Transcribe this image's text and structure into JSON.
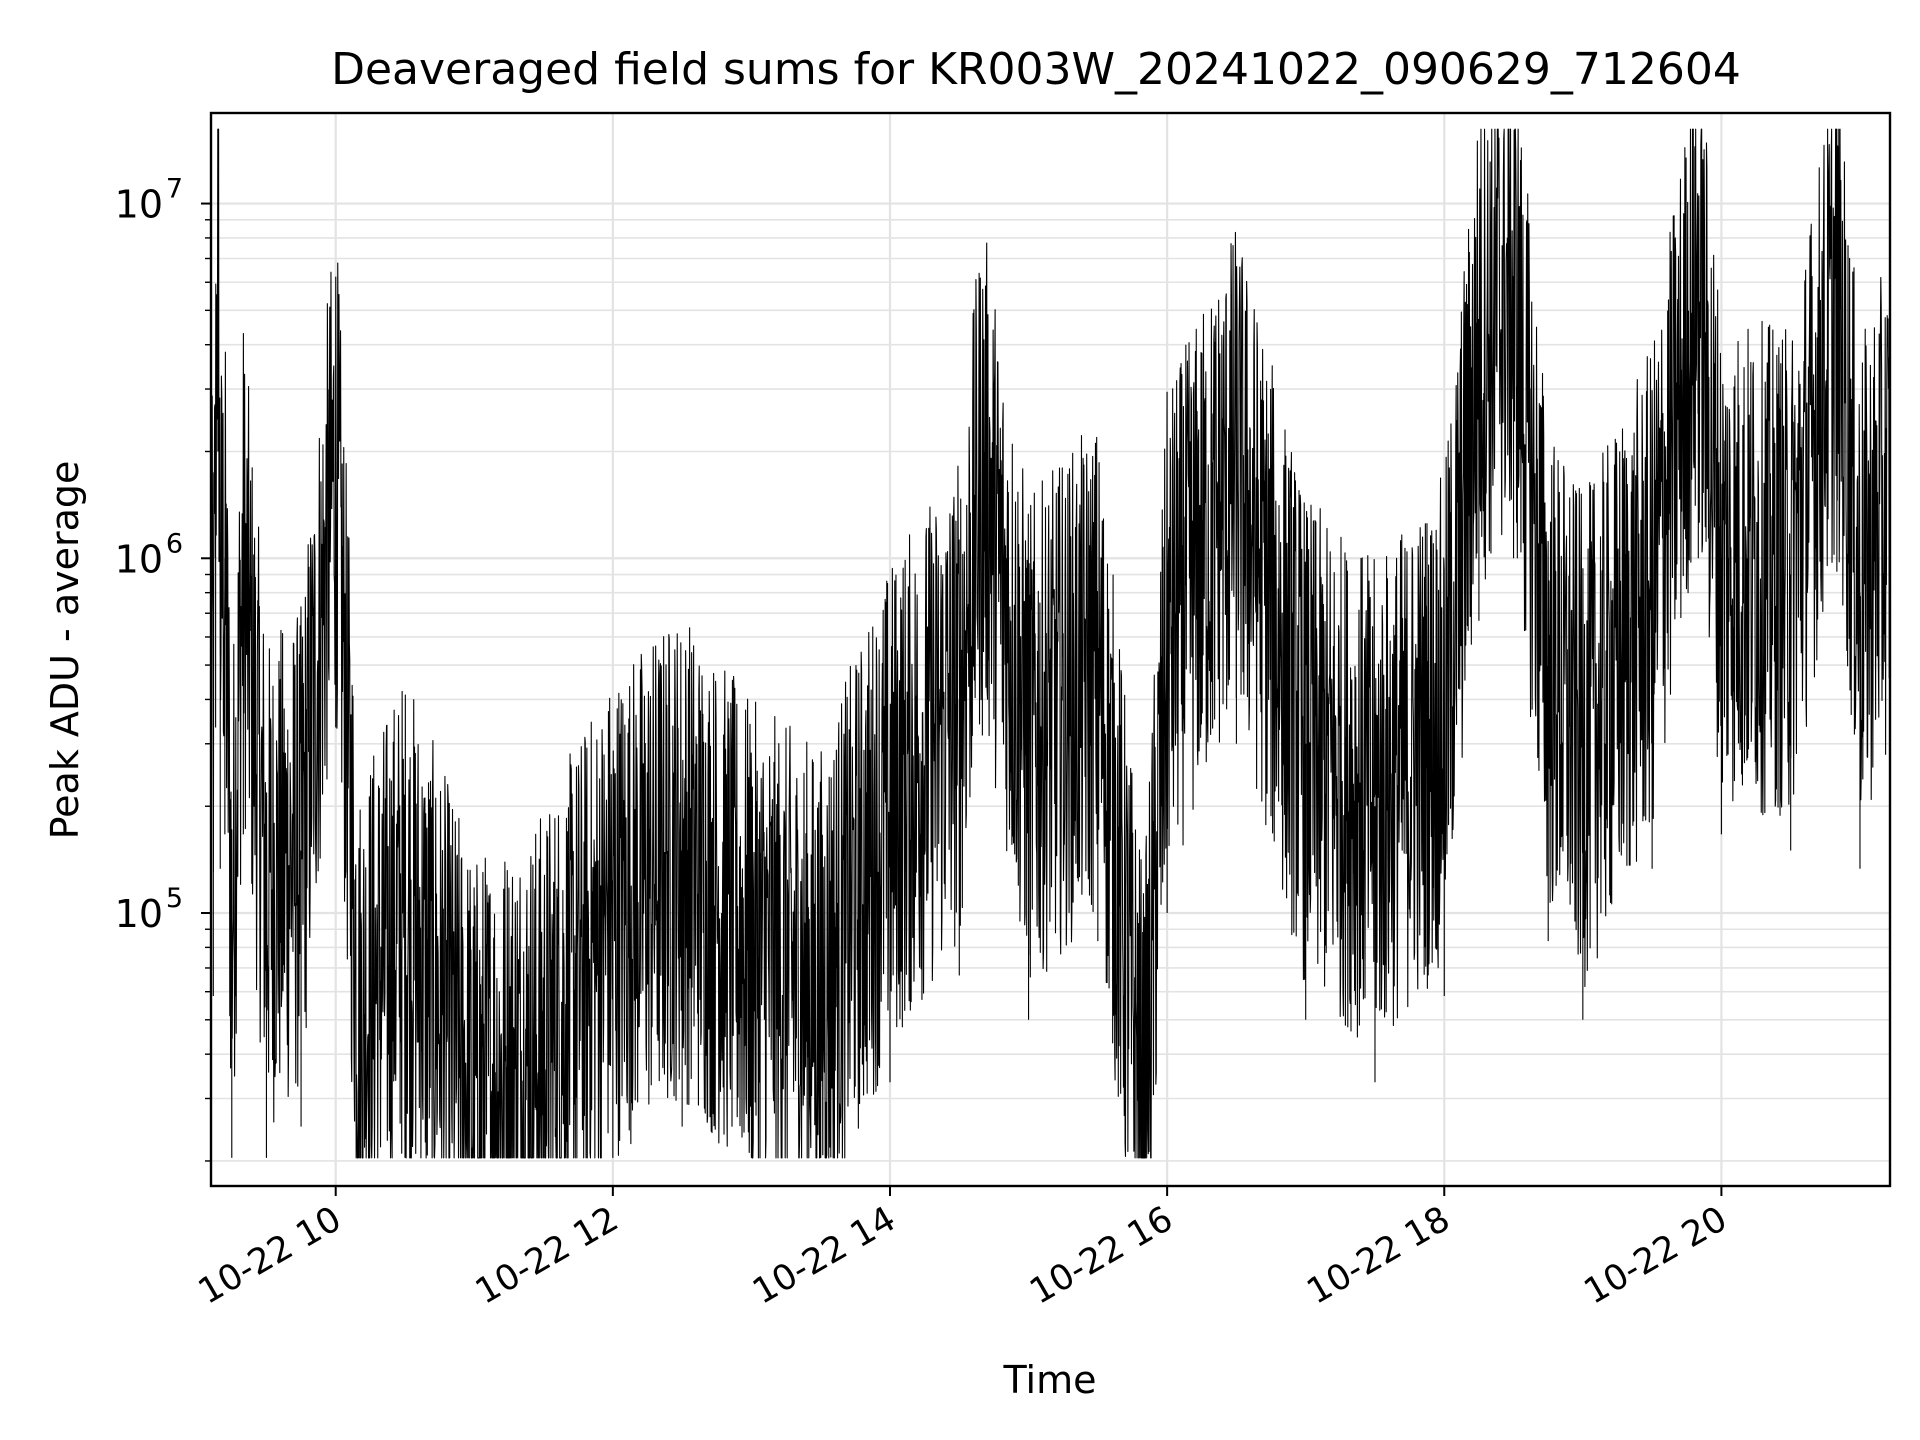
{
  "chart_data": {
    "type": "line",
    "title": "Deaveraged field sums for KR003W_20241022_090629_712604",
    "xlabel": "Time",
    "ylabel": "Peak ADU - average",
    "xlim": [
      "2024-10-22 09:06",
      "2024-10-22 21:13"
    ],
    "xticks": [
      {
        "t": "2024-10-22 10:00",
        "label": "10-22 10"
      },
      {
        "t": "2024-10-22 12:00",
        "label": "10-22 12"
      },
      {
        "t": "2024-10-22 14:00",
        "label": "10-22 14"
      },
      {
        "t": "2024-10-22 16:00",
        "label": "10-22 16"
      },
      {
        "t": "2024-10-22 18:00",
        "label": "10-22 18"
      },
      {
        "t": "2024-10-22 20:00",
        "label": "10-22 20"
      }
    ],
    "yscale": "log",
    "ylim": [
      17000,
      18000000
    ],
    "yticks": [
      {
        "value": 100000,
        "base": "10",
        "exp": "5"
      },
      {
        "value": 1000000,
        "base": "10",
        "exp": "6"
      },
      {
        "value": 10000000,
        "base": "10",
        "exp": "7"
      }
    ],
    "grid": true,
    "series": [
      {
        "color": "#000000",
        "points": [
          [
            "2024-10-22 09:06",
            1000000
          ],
          [
            "2024-10-22 09:07",
            350000
          ],
          [
            "2024-10-22 09:08",
            2000000
          ],
          [
            "2024-10-22 09:09",
            12000000
          ],
          [
            "2024-10-22 09:10",
            800000
          ],
          [
            "2024-10-22 09:12",
            1000000
          ],
          [
            "2024-10-22 09:15",
            90000
          ],
          [
            "2024-10-22 09:20",
            1000000
          ],
          [
            "2024-10-22 09:30",
            120000
          ],
          [
            "2024-10-22 09:45",
            150000
          ],
          [
            "2024-10-22 10:00",
            2000000
          ],
          [
            "2024-10-22 10:10",
            50000
          ],
          [
            "2024-10-22 10:30",
            100000
          ],
          [
            "2024-10-22 11:00",
            30000
          ],
          [
            "2024-10-22 11:30",
            40000
          ],
          [
            "2024-10-22 12:00",
            100000
          ],
          [
            "2024-10-22 12:30",
            150000
          ],
          [
            "2024-10-22 13:00",
            80000
          ],
          [
            "2024-10-22 13:30",
            60000
          ],
          [
            "2024-10-22 14:00",
            200000
          ],
          [
            "2024-10-22 14:30",
            400000
          ],
          [
            "2024-10-22 14:40",
            1900000
          ],
          [
            "2024-10-22 15:00",
            300000
          ],
          [
            "2024-10-22 15:30",
            500000
          ],
          [
            "2024-10-22 15:50",
            25000
          ],
          [
            "2024-10-22 16:00",
            600000
          ],
          [
            "2024-10-22 16:30",
            1800000
          ],
          [
            "2024-10-22 17:00",
            300000
          ],
          [
            "2024-10-22 17:30",
            200000
          ],
          [
            "2024-10-22 18:00",
            350000
          ],
          [
            "2024-10-22 18:15",
            4000000
          ],
          [
            "2024-10-22 18:30",
            6000000
          ],
          [
            "2024-10-22 18:45",
            500000
          ],
          [
            "2024-10-22 19:00",
            300000
          ],
          [
            "2024-10-22 19:30",
            800000
          ],
          [
            "2024-10-22 19:50",
            6000000
          ],
          [
            "2024-10-22 20:00",
            1000000
          ],
          [
            "2024-10-22 20:30",
            900000
          ],
          [
            "2024-10-22 20:50",
            5500000
          ],
          [
            "2024-10-22 21:00",
            800000
          ],
          [
            "2024-10-22 21:13",
            1500000
          ]
        ],
        "jitter_points": 4200
      }
    ]
  }
}
